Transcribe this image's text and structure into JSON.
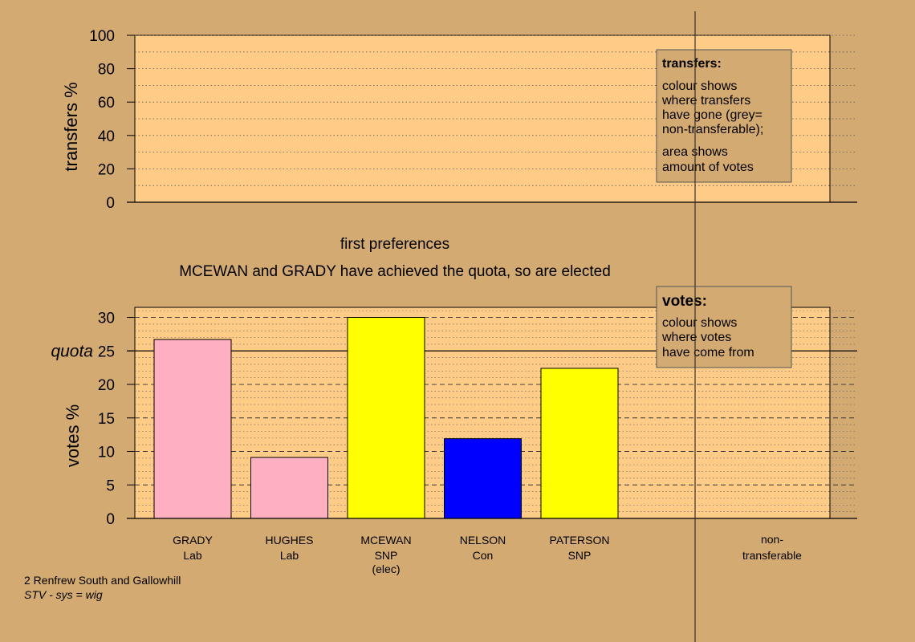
{
  "colors": {
    "background": "#d4aa73",
    "plot_area": "#ffcc88",
    "grady": "#ffb0c0",
    "hughes": "#ffb0c0",
    "mcewan": "#ffff00",
    "nelson": "#0000ff",
    "paterson": "#ffff00"
  },
  "chart_data": [
    {
      "type": "area",
      "panel": "transfers",
      "ylabel": "transfers %",
      "ylim": [
        0,
        100
      ],
      "yticks": [
        0,
        20,
        40,
        60,
        80,
        100
      ],
      "grid": "dotted",
      "series": []
    },
    {
      "type": "bar",
      "panel": "votes",
      "title": "first preferences",
      "subtitle": "MCEWAN and GRADY have achieved the quota, so are elected",
      "ylabel": "votes %",
      "ylim": [
        0,
        31.5
      ],
      "yticks": [
        0,
        5,
        10,
        15,
        20,
        25,
        30
      ],
      "quota": 25,
      "quota_label": "quota",
      "grid": "dashed",
      "categories": [
        {
          "name": "GRADY",
          "party": "Lab",
          "status": ""
        },
        {
          "name": "HUGHES",
          "party": "Lab",
          "status": ""
        },
        {
          "name": "MCEWAN",
          "party": "SNP",
          "status": "(elec)"
        },
        {
          "name": "NELSON",
          "party": "Con",
          "status": ""
        },
        {
          "name": "PATERSON",
          "party": "SNP",
          "status": ""
        }
      ],
      "values": [
        26.7,
        9.1,
        30.0,
        11.9,
        22.4
      ],
      "nontransferable_label_line1": "non-",
      "nontransferable_label_line2": "transferable"
    }
  ],
  "legend_transfers": {
    "title": "transfers:",
    "line1": "colour shows",
    "line2": "where transfers",
    "line3": "have gone (grey=",
    "line4": "non-transferable);",
    "line5": "area shows",
    "line6": "amount of votes"
  },
  "legend_votes": {
    "title": "votes:",
    "line1": "colour shows",
    "line2": "where votes",
    "line3": "have come from"
  },
  "footer": {
    "constituency": "2 Renfrew South and Gallowhill",
    "system": "STV - sys = wig"
  }
}
